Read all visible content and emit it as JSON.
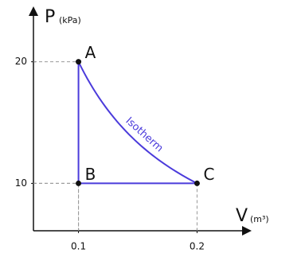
{
  "chart_data": {
    "type": "line",
    "y_label": "P",
    "y_unit": "(kPa)",
    "x_label": "V",
    "x_unit": "(m³)",
    "x": [
      0.1,
      0.1,
      0.2
    ],
    "series": [
      {
        "values": [
          20,
          10,
          10
        ],
        "point_labels": [
          "A",
          "B",
          "C"
        ],
        "color": "#4b3bdb"
      }
    ],
    "curve_label": "Isotherm",
    "xlim": [
      0.062,
      0.242
    ],
    "ylim": [
      6.1,
      24.1
    ],
    "xticks": [
      0.1,
      0.2
    ],
    "yticks": [
      10,
      20
    ]
  }
}
